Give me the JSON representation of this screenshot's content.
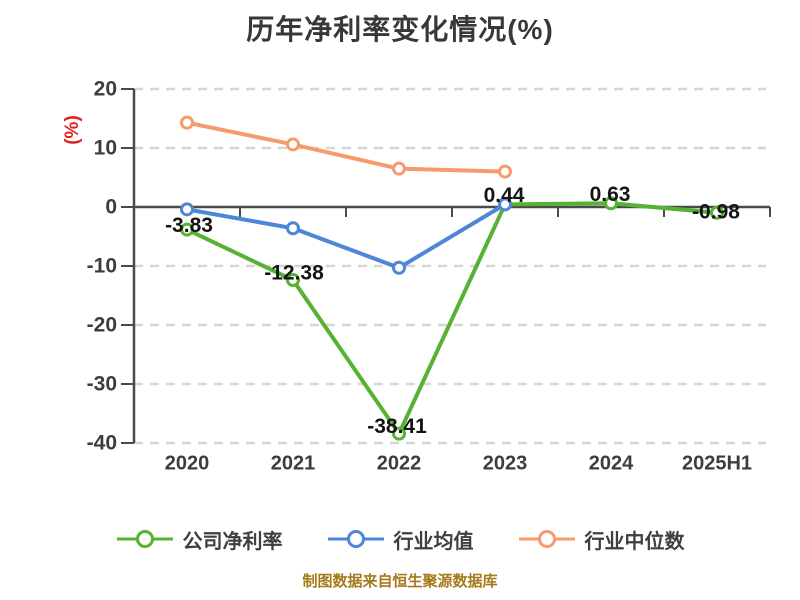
{
  "chart_data": {
    "type": "line",
    "title": "历年净利率变化情况(%)",
    "y_unit_label": "(%)",
    "categories": [
      "2020",
      "2021",
      "2022",
      "2023",
      "2024",
      "2025H1"
    ],
    "ylim": [
      -40,
      20
    ],
    "yticks": [
      20,
      10,
      0,
      -10,
      -20,
      -30,
      -40
    ],
    "grid": "horizontal-dashed",
    "legend_position": "bottom",
    "series": [
      {
        "name": "公司净利率",
        "color": "#57b232",
        "values": [
          -3.83,
          -12.38,
          -38.41,
          0.44,
          0.63,
          -0.98
        ],
        "point_labels": [
          "-3.83",
          "-12.38",
          "-38.41",
          "0.44",
          "0.63",
          "-0.98"
        ]
      },
      {
        "name": "行业均值",
        "color": "#4e86d8",
        "values": [
          -0.4,
          -3.6,
          -10.3,
          0.44,
          null,
          null
        ],
        "point_labels": null
      },
      {
        "name": "行业中位数",
        "color": "#f59b6e",
        "values": [
          14.3,
          10.6,
          6.5,
          6.0,
          null,
          null
        ],
        "point_labels": null
      }
    ]
  },
  "styles": {
    "background": "#ffffff",
    "axis_color": "#4a4a4a",
    "grid_color": "#d6d6d6",
    "tick_label_color": "#3d3d3d",
    "data_label_color": "#141414",
    "title_color": "#383838",
    "y_unit_color": "#e02020",
    "legend_text_color": "#3f3f3f",
    "footer_color": "#a6791b"
  },
  "footer": {
    "text": "制图数据来自恒生聚源数据库"
  }
}
